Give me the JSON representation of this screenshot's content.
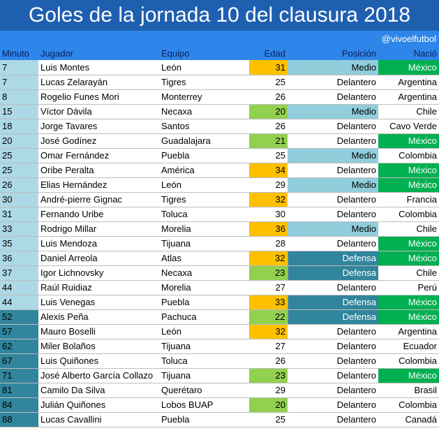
{
  "title": "Goles de la jornada 10 del clausura 2018",
  "credit": "@vivoelfutbol",
  "headers": {
    "minuto": "Minuto",
    "jugador": "Jugador",
    "equipo": "Equipo",
    "edad": "Edad",
    "posicion": "Posición",
    "nacion": "Nació"
  },
  "colors": {
    "title_bg": "#1f5fb0",
    "header_bg": "#2e86ea",
    "minuto_light": "#add8e6",
    "minuto_dark": "#31859c",
    "edad_orange": "#ffc000",
    "edad_green": "#92d050",
    "medio": "#92cddc",
    "defensa": "#31859c",
    "mexico": "#00b050"
  },
  "rows": [
    {
      "minuto": "7",
      "jugador": "Luis Montes",
      "equipo": "León",
      "edad": "31",
      "posicion": "Medio",
      "nacion": "México",
      "min_style": "light",
      "edad_style": "orange"
    },
    {
      "minuto": "7",
      "jugador": "Lucas Zelarayán",
      "equipo": "Tigres",
      "edad": "25",
      "posicion": "Delantero",
      "nacion": "Argentina",
      "min_style": "light",
      "edad_style": ""
    },
    {
      "minuto": "8",
      "jugador": "Rogelio Funes Mori",
      "equipo": "Monterrey",
      "edad": "26",
      "posicion": "Delantero",
      "nacion": "Argentina",
      "min_style": "light",
      "edad_style": ""
    },
    {
      "minuto": "15",
      "jugador": "Víctor Dávila",
      "equipo": "Necaxa",
      "edad": "20",
      "posicion": "Medio",
      "nacion": "Chile",
      "min_style": "light",
      "edad_style": "green"
    },
    {
      "minuto": "18",
      "jugador": "Jorge Tavares",
      "equipo": "Santos",
      "edad": "26",
      "posicion": "Delantero",
      "nacion": "Cavo Verde",
      "min_style": "light",
      "edad_style": ""
    },
    {
      "minuto": "20",
      "jugador": "José Godínez",
      "equipo": "Guadalajara",
      "edad": "21",
      "posicion": "Delantero",
      "nacion": "México",
      "min_style": "light",
      "edad_style": "green"
    },
    {
      "minuto": "25",
      "jugador": "Omar Fernández",
      "equipo": "Puebla",
      "edad": "25",
      "posicion": "Medio",
      "nacion": "Colombia",
      "min_style": "light",
      "edad_style": ""
    },
    {
      "minuto": "25",
      "jugador": "Oribe Peralta",
      "equipo": "América",
      "edad": "34",
      "posicion": "Delantero",
      "nacion": "México",
      "min_style": "light",
      "edad_style": "orange"
    },
    {
      "minuto": "26",
      "jugador": "Elias Hernández",
      "equipo": "León",
      "edad": "29",
      "posicion": "Medio",
      "nacion": "México",
      "min_style": "light",
      "edad_style": ""
    },
    {
      "minuto": "30",
      "jugador": "André-pierre Gignac",
      "equipo": "Tigres",
      "edad": "32",
      "posicion": "Delantero",
      "nacion": "Francia",
      "min_style": "light",
      "edad_style": "orange"
    },
    {
      "minuto": "31",
      "jugador": "Fernando Uribe",
      "equipo": "Toluca",
      "edad": "30",
      "posicion": "Delantero",
      "nacion": "Colombia",
      "min_style": "light",
      "edad_style": ""
    },
    {
      "minuto": "33",
      "jugador": "Rodrigo Millar",
      "equipo": "Morelia",
      "edad": "36",
      "posicion": "Medio",
      "nacion": "Chile",
      "min_style": "light",
      "edad_style": "orange"
    },
    {
      "minuto": "35",
      "jugador": "Luis Mendoza",
      "equipo": "Tijuana",
      "edad": "28",
      "posicion": "Delantero",
      "nacion": "México",
      "min_style": "light",
      "edad_style": ""
    },
    {
      "minuto": "36",
      "jugador": "Daniel Arreola",
      "equipo": "Atlas",
      "edad": "32",
      "posicion": "Defensa",
      "nacion": "México",
      "min_style": "light",
      "edad_style": "orange"
    },
    {
      "minuto": "37",
      "jugador": "Igor Lichnovsky",
      "equipo": "Necaxa",
      "edad": "23",
      "posicion": "Defensa",
      "nacion": "Chile",
      "min_style": "light",
      "edad_style": "green"
    },
    {
      "minuto": "44",
      "jugador": "Raúl Ruidiaz",
      "equipo": "Morelia",
      "edad": "27",
      "posicion": "Delantero",
      "nacion": "Perú",
      "min_style": "light",
      "edad_style": ""
    },
    {
      "minuto": "44",
      "jugador": "Luis Venegas",
      "equipo": "Puebla",
      "edad": "33",
      "posicion": "Defensa",
      "nacion": "México",
      "min_style": "light",
      "edad_style": "orange"
    },
    {
      "minuto": "52",
      "jugador": "Alexis Peña",
      "equipo": "Pachuca",
      "edad": "22",
      "posicion": "Defensa",
      "nacion": "México",
      "min_style": "dark",
      "edad_style": "green"
    },
    {
      "minuto": "57",
      "jugador": "Mauro Boselli",
      "equipo": "León",
      "edad": "32",
      "posicion": "Delantero",
      "nacion": "Argentina",
      "min_style": "dark",
      "edad_style": "orange"
    },
    {
      "minuto": "62",
      "jugador": "Miler Bolaños",
      "equipo": "Tijuana",
      "edad": "27",
      "posicion": "Delantero",
      "nacion": "Ecuador",
      "min_style": "dark",
      "edad_style": ""
    },
    {
      "minuto": "67",
      "jugador": "Luis Quiñones",
      "equipo": "Toluca",
      "edad": "26",
      "posicion": "Delantero",
      "nacion": "Colombia",
      "min_style": "dark",
      "edad_style": ""
    },
    {
      "minuto": "71",
      "jugador": "José Alberto García Collazo",
      "equipo": "Tijuana",
      "edad": "23",
      "posicion": "Delantero",
      "nacion": "México",
      "min_style": "dark",
      "edad_style": "green"
    },
    {
      "minuto": "81",
      "jugador": "Camilo Da Silva",
      "equipo": "Querétaro",
      "edad": "29",
      "posicion": "Delantero",
      "nacion": "Brasil",
      "min_style": "dark",
      "edad_style": ""
    },
    {
      "minuto": "84",
      "jugador": "Julián Quiñones",
      "equipo": "Lobos BUAP",
      "edad": "20",
      "posicion": "Delantero",
      "nacion": "Colombia",
      "min_style": "dark",
      "edad_style": "green"
    },
    {
      "minuto": "88",
      "jugador": "Lucas Cavallini",
      "equipo": "Puebla",
      "edad": "25",
      "posicion": "Delantero",
      "nacion": "Canadá",
      "min_style": "dark",
      "edad_style": ""
    }
  ]
}
